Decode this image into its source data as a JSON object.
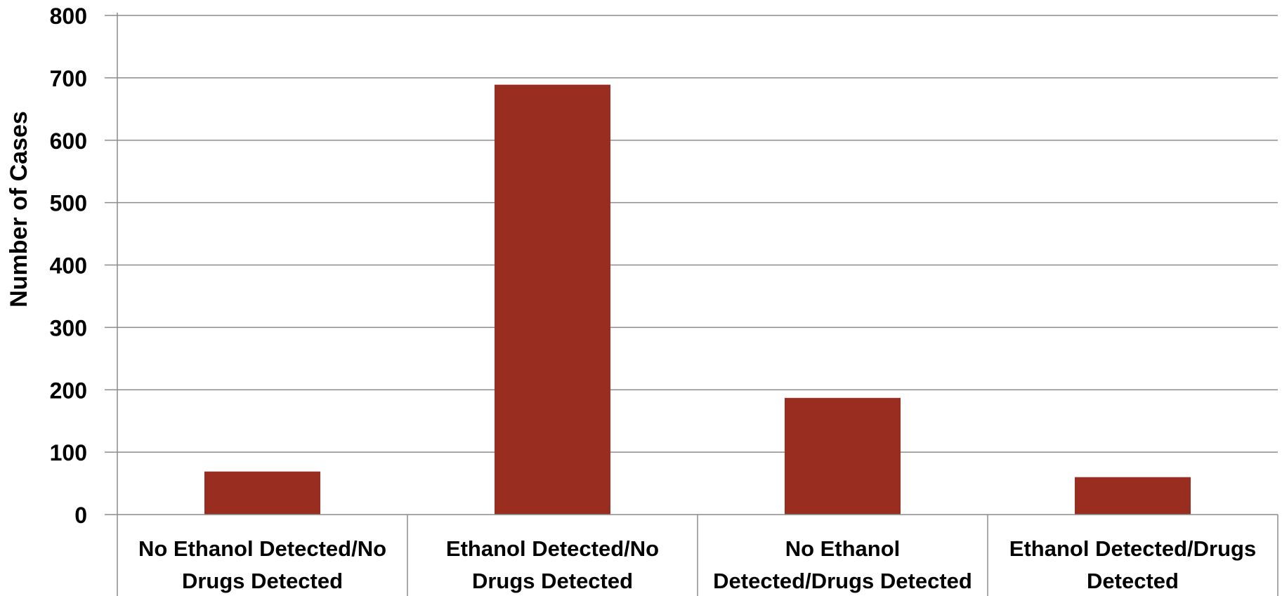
{
  "chart_data": {
    "type": "bar",
    "title": "",
    "xlabel": "",
    "ylabel": "Number of Cases",
    "ylim": [
      0,
      800
    ],
    "y_ticks": [
      0,
      100,
      200,
      300,
      400,
      500,
      600,
      700,
      800
    ],
    "grid": true,
    "legend": "none",
    "categories": [
      [
        "No Ethanol Detected/No",
        "Drugs Detected"
      ],
      [
        "Ethanol Detected/No",
        "Drugs Detected"
      ],
      [
        "No Ethanol",
        "Detected/Drugs Detected"
      ],
      [
        "Ethanol Detected/Drugs",
        "Detected"
      ]
    ],
    "values": [
      69,
      689,
      187,
      60
    ],
    "colors": {
      "bar": "#992D20",
      "grid": "#8C8C8C",
      "axis": "#8C8C8C",
      "text": "#000000"
    }
  }
}
